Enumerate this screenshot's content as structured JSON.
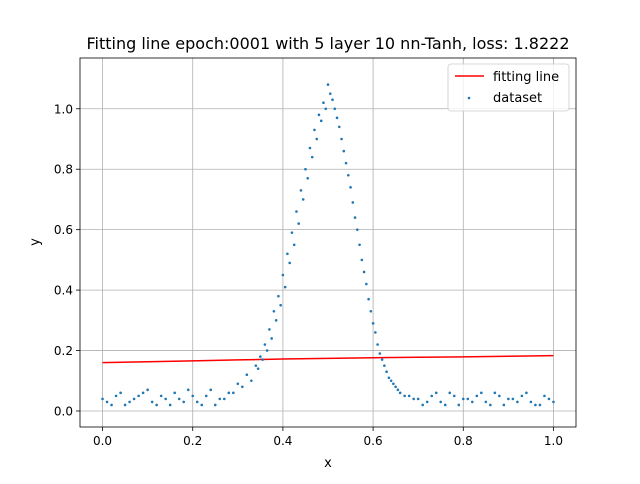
{
  "chart_data": {
    "type": "scatter",
    "title": "Fitting line epoch:0001 with 5 layer 10 nn-Tanh, loss: 1.8222",
    "xlabel": "x",
    "ylabel": "y",
    "xlim": [
      -0.05,
      1.05
    ],
    "ylim": [
      -0.053,
      1.168
    ],
    "xticks": [
      0.0,
      0.2,
      0.4,
      0.6,
      0.8,
      1.0
    ],
    "xtick_labels": [
      "0.0",
      "0.2",
      "0.4",
      "0.6",
      "0.8",
      "1.0"
    ],
    "yticks": [
      0.0,
      0.2,
      0.4,
      0.6,
      0.8,
      1.0
    ],
    "ytick_labels": [
      "0.0",
      "0.2",
      "0.4",
      "0.6",
      "0.8",
      "1.0"
    ],
    "grid": true,
    "legend": {
      "placement": "top-right",
      "entries": [
        "fitting line",
        "dataset"
      ]
    },
    "series": [
      {
        "name": "fitting line",
        "kind": "line",
        "color": "#ff0000",
        "x": [
          0.0,
          0.1,
          0.2,
          0.3,
          0.4,
          0.5,
          0.6,
          0.7,
          0.8,
          0.9,
          1.0
        ],
        "y": [
          0.16,
          0.163,
          0.166,
          0.169,
          0.172,
          0.174,
          0.176,
          0.178,
          0.179,
          0.181,
          0.183
        ]
      },
      {
        "name": "dataset",
        "kind": "scatter",
        "color": "#1f77b4",
        "x": [
          0.0,
          0.02,
          0.04,
          0.06,
          0.08,
          0.1,
          0.12,
          0.14,
          0.16,
          0.18,
          0.2,
          0.22,
          0.24,
          0.26,
          0.28,
          0.3,
          0.32,
          0.34,
          0.35,
          0.36,
          0.37,
          0.38,
          0.39,
          0.4,
          0.41,
          0.42,
          0.43,
          0.44,
          0.45,
          0.46,
          0.47,
          0.48,
          0.49,
          0.5,
          0.51,
          0.52,
          0.53,
          0.54,
          0.55,
          0.56,
          0.57,
          0.58,
          0.59,
          0.6,
          0.61,
          0.62,
          0.63,
          0.64,
          0.65,
          0.66,
          0.68,
          0.7,
          0.72,
          0.74,
          0.76,
          0.78,
          0.8,
          0.82,
          0.84,
          0.86,
          0.88,
          0.9,
          0.92,
          0.94,
          0.96,
          0.98,
          1.0,
          0.01,
          0.03,
          0.05,
          0.07,
          0.09,
          0.11,
          0.13,
          0.15,
          0.17,
          0.19,
          0.21,
          0.23,
          0.25,
          0.27,
          0.29,
          0.31,
          0.33,
          0.345,
          0.355,
          0.365,
          0.375,
          0.385,
          0.395,
          0.405,
          0.415,
          0.425,
          0.435,
          0.445,
          0.455,
          0.465,
          0.475,
          0.485,
          0.495,
          0.505,
          0.515,
          0.525,
          0.535,
          0.545,
          0.555,
          0.565,
          0.575,
          0.585,
          0.595,
          0.605,
          0.615,
          0.625,
          0.635,
          0.645,
          0.655,
          0.67,
          0.69,
          0.71,
          0.73,
          0.75,
          0.77,
          0.79,
          0.81,
          0.83,
          0.85,
          0.87,
          0.89,
          0.91,
          0.93,
          0.95,
          0.97,
          0.99
        ],
        "y": [
          0.04,
          0.02,
          0.06,
          0.03,
          0.05,
          0.07,
          0.02,
          0.04,
          0.06,
          0.03,
          0.05,
          0.02,
          0.07,
          0.04,
          0.06,
          0.09,
          0.12,
          0.15,
          0.18,
          0.22,
          0.27,
          0.33,
          0.38,
          0.45,
          0.52,
          0.59,
          0.66,
          0.73,
          0.8,
          0.87,
          0.93,
          0.98,
          1.02,
          1.08,
          1.03,
          0.97,
          0.9,
          0.82,
          0.74,
          0.64,
          0.55,
          0.46,
          0.37,
          0.29,
          0.22,
          0.17,
          0.13,
          0.1,
          0.08,
          0.06,
          0.05,
          0.04,
          0.03,
          0.06,
          0.02,
          0.05,
          0.04,
          0.03,
          0.06,
          0.02,
          0.05,
          0.04,
          0.03,
          0.06,
          0.02,
          0.05,
          0.03,
          0.03,
          0.05,
          0.02,
          0.04,
          0.06,
          0.03,
          0.05,
          0.02,
          0.04,
          0.07,
          0.03,
          0.05,
          0.02,
          0.04,
          0.06,
          0.08,
          0.1,
          0.14,
          0.17,
          0.2,
          0.24,
          0.3,
          0.35,
          0.41,
          0.49,
          0.55,
          0.62,
          0.7,
          0.77,
          0.84,
          0.9,
          0.96,
          1.0,
          1.05,
          1.0,
          0.94,
          0.86,
          0.78,
          0.69,
          0.6,
          0.5,
          0.42,
          0.33,
          0.26,
          0.19,
          0.15,
          0.11,
          0.09,
          0.07,
          0.05,
          0.04,
          0.02,
          0.05,
          0.03,
          0.06,
          0.02,
          0.04,
          0.05,
          0.03,
          0.06,
          0.02,
          0.04,
          0.05,
          0.03,
          0.02,
          0.04
        ]
      }
    ]
  }
}
